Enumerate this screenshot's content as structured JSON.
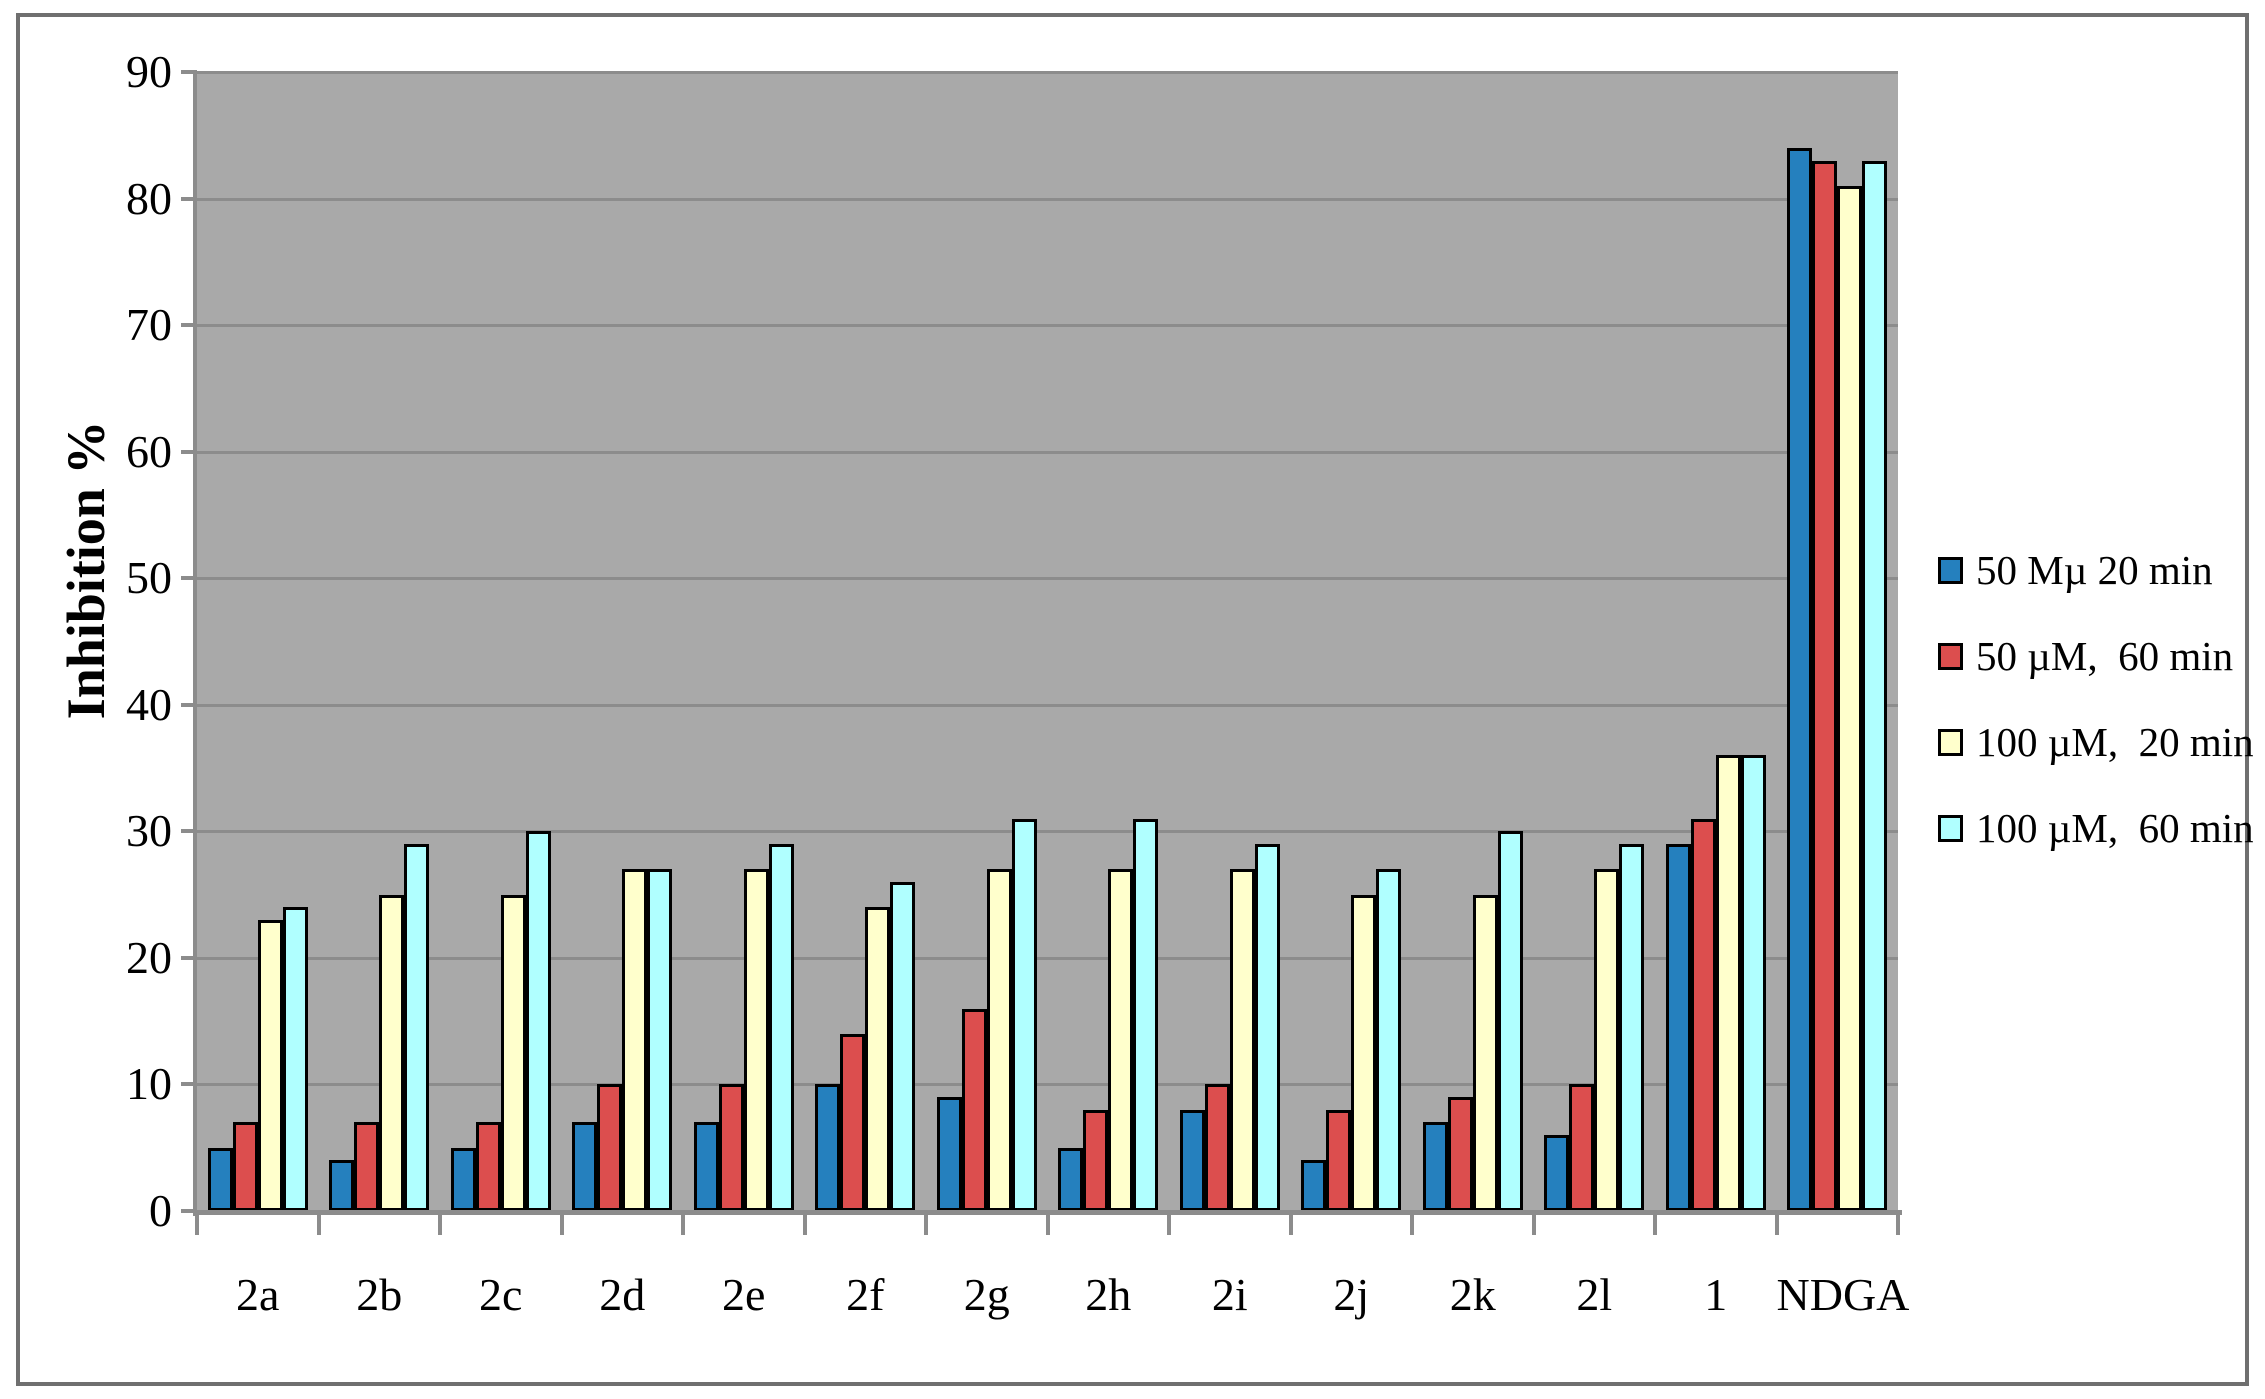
{
  "chart_data": {
    "type": "bar",
    "title": "",
    "ylabel": "Inhibition %",
    "xlabel": "",
    "ylim": [
      0,
      90
    ],
    "yticks": [
      0,
      10,
      20,
      30,
      40,
      50,
      60,
      70,
      80,
      90
    ],
    "grid": true,
    "legend_position": "right",
    "plot_background": "#A9A9A9",
    "gridline_color": "#8C8C8C",
    "categories": [
      "2a",
      "2b",
      "2c",
      "2d",
      "2e",
      "2f",
      "2g",
      "2h",
      "2i",
      "2j",
      "2k",
      "2l",
      "1",
      "NDGA"
    ],
    "series": [
      {
        "name": "50 Mµ 20 min",
        "color": "#2580BE",
        "values": [
          5,
          4,
          5,
          7,
          7,
          10,
          9,
          5,
          8,
          4,
          7,
          6,
          29,
          84
        ]
      },
      {
        "name": "50 µM,  60 min",
        "color": "#DC4E4E",
        "values": [
          7,
          7,
          7,
          10,
          10,
          14,
          16,
          8,
          10,
          8,
          9,
          10,
          31,
          83
        ]
      },
      {
        "name": "100 µM,  20 min",
        "color": "#FFFFCC",
        "values": [
          23,
          25,
          25,
          27,
          27,
          24,
          27,
          27,
          27,
          25,
          25,
          27,
          36,
          81
        ]
      },
      {
        "name": "100 µM,  60 min",
        "color": "#B0FFFF",
        "values": [
          24,
          29,
          30,
          27,
          29,
          26,
          31,
          31,
          29,
          27,
          30,
          29,
          36,
          83
        ]
      }
    ]
  }
}
